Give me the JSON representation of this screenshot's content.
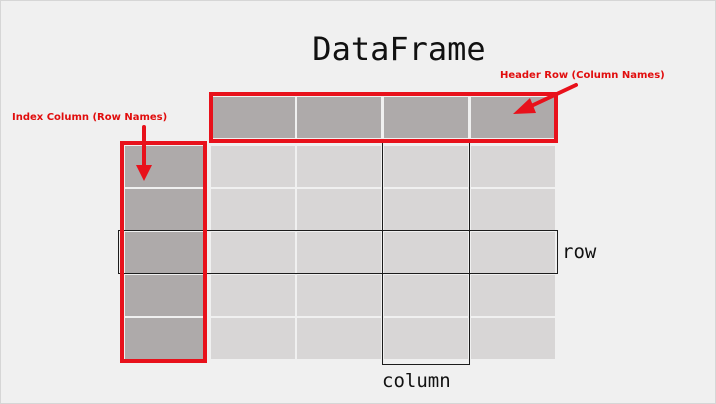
{
  "title": "DataFrame",
  "annotations": {
    "header_row": "Header Row (Column Names)",
    "index_column": "Index Column (Row Names)"
  },
  "labels": {
    "row": "row",
    "column": "column"
  },
  "grid": {
    "header_cells": 4,
    "data_rows": 5,
    "data_columns": 4
  },
  "colors": {
    "background": "#f0f0f0",
    "highlight": "#e8111b",
    "annotation_text": "#e10d0d",
    "header_fill": "#aeaaaa",
    "data_fill": "#d8d6d6"
  },
  "icons": [
    "arrow-to-header-icon",
    "arrow-to-index-icon"
  ]
}
